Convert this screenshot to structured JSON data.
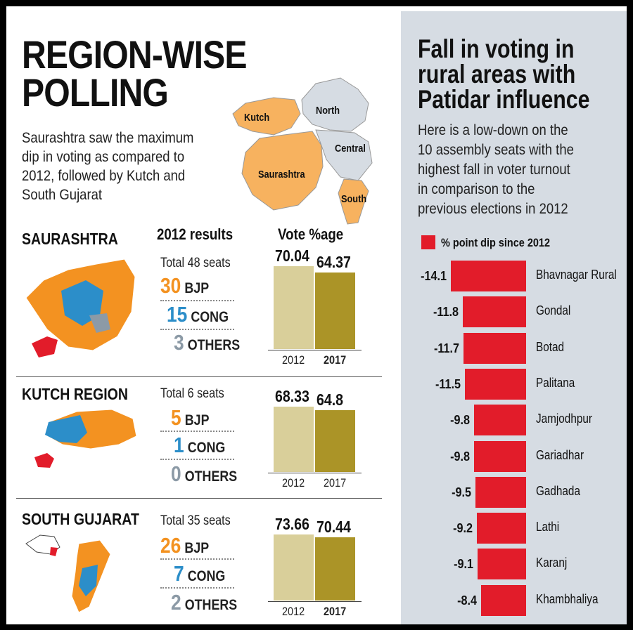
{
  "headline": [
    "REGION-WISE",
    "POLLING"
  ],
  "intro": "Saurashtra saw the maximum dip in voting as compared to 2012, followed by Kutch and South Gujarat",
  "map_labels": [
    "Kutch",
    "North",
    "Central",
    "Saurashtra",
    "South"
  ],
  "colors": {
    "bjp": "#f39221",
    "cong": "#2c8ec9",
    "others": "#8c9aa6",
    "bar_2012": "#d9cf9a",
    "bar_2017": "#ab9427",
    "dip": "#e21c2a",
    "panel": "#d6dce3"
  },
  "column_headers": {
    "results": "2012 results",
    "vote": "Vote %age"
  },
  "party_labels": {
    "bjp": "BJP",
    "cong": "CONG",
    "others": "OTHERS"
  },
  "regions": [
    {
      "name": "SAURASHTRA",
      "seats": "Total 48 seats",
      "bjp": "30",
      "cong": "15",
      "others": "3",
      "vote_2012": "70.04",
      "vote_2017": "64.37",
      "year_2012": "2012",
      "year_2017": "2017"
    },
    {
      "name": "KUTCH REGION",
      "seats": "Total 6 seats",
      "bjp": "5",
      "cong": "1",
      "others": "0",
      "vote_2012": "68.33",
      "vote_2017": "64.8",
      "year_2012": "2012",
      "year_2017": "2017"
    },
    {
      "name": "SOUTH GUJARAT",
      "seats": "Total 35 seats",
      "bjp": "26",
      "cong": "7",
      "others": "2",
      "vote_2012": "73.66",
      "vote_2017": "70.44",
      "year_2012": "2012",
      "year_2017": "2017"
    }
  ],
  "right_panel": {
    "title": [
      "Fall in voting in",
      "rural areas with",
      "Patidar influence"
    ],
    "subtitle": [
      "Here is a low-down on the",
      "10 assembly seats with the",
      "highest fall in voter turnout",
      "in comparison to the",
      "previous elections in 2012"
    ],
    "legend": "% point dip since 2012"
  },
  "chart_data": [
    {
      "type": "bar",
      "title": "Vote %age",
      "categories": [
        "2012",
        "2017"
      ],
      "groups": [
        {
          "name": "SAURASHTRA",
          "values": [
            70.04,
            64.37
          ]
        },
        {
          "name": "KUTCH REGION",
          "values": [
            68.33,
            64.8
          ]
        },
        {
          "name": "SOUTH GUJARAT",
          "values": [
            73.66,
            70.44
          ]
        }
      ]
    },
    {
      "type": "bar",
      "orientation": "horizontal",
      "title": "Fall in voting in rural areas with Patidar influence",
      "legend": "% point dip since 2012",
      "categories": [
        "Bhavnagar Rural",
        "Gondal",
        "Botad",
        "Palitana",
        "Jamjodhpur",
        "Gariadhar",
        "Gadhada",
        "Lathi",
        "Karanj",
        "Khambhaliya"
      ],
      "values": [
        -14.1,
        -11.8,
        -11.7,
        -11.5,
        -9.8,
        -9.8,
        -9.5,
        -9.2,
        -9.1,
        -8.4
      ],
      "labels": [
        "-14.1",
        "-11.8",
        "-11.7",
        "-11.5",
        "-9.8",
        "-9.8",
        "-9.5",
        "-9.2",
        "-9.1",
        "-8.4"
      ]
    }
  ]
}
